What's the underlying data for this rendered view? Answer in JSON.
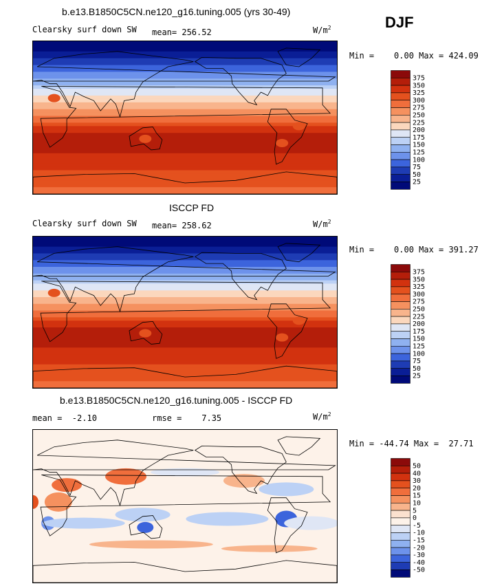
{
  "season": "DJF",
  "units_base": "W/m",
  "units_exp": "2",
  "panels": [
    {
      "title": "b.e13.B1850C5CN.ne120_g16.tuning.005 (yrs 30-49)",
      "left_label": "Clearsky surf down SW",
      "center_label": "mean= 256.52",
      "minmax": "Min =    0.00 Max = 424.09",
      "levels": [
        "375",
        "350",
        "325",
        "300",
        "275",
        "250",
        "225",
        "200",
        "175",
        "150",
        "125",
        "100",
        "75",
        "50",
        "25"
      ],
      "colors": [
        "#8b0a0a",
        "#b41e0a",
        "#d2320f",
        "#e4511e",
        "#f06e3c",
        "#f5915f",
        "#f8b48c",
        "#fbd7bd",
        "#dfe6f5",
        "#bcd1f5",
        "#8fb1f0",
        "#6d92eb",
        "#3c64dc",
        "#1e3cb4",
        "#0a1e96",
        "#000a78"
      ]
    },
    {
      "title": "ISCCP FD",
      "left_label": "Clearsky surf down SW",
      "center_label": "mean= 258.62",
      "minmax": "Min =    0.00 Max = 391.27",
      "levels": [
        "375",
        "350",
        "325",
        "300",
        "275",
        "250",
        "225",
        "200",
        "175",
        "150",
        "125",
        "100",
        "75",
        "50",
        "25"
      ],
      "colors": [
        "#8b0a0a",
        "#b41e0a",
        "#d2320f",
        "#e4511e",
        "#f06e3c",
        "#f5915f",
        "#f8b48c",
        "#fbd7bd",
        "#dfe6f5",
        "#bcd1f5",
        "#8fb1f0",
        "#6d92eb",
        "#3c64dc",
        "#1e3cb4",
        "#0a1e96",
        "#000a78"
      ]
    },
    {
      "title": "b.e13.B1850C5CN.ne120_g16.tuning.005 - ISCCP FD",
      "left_label": "mean =  -2.10",
      "center_label": "rmse =    7.35",
      "minmax": "Min = -44.74 Max =  27.71",
      "levels": [
        "50",
        "40",
        "30",
        "20",
        "15",
        "10",
        "5",
        "0",
        "-5",
        "-10",
        "-15",
        "-20",
        "-30",
        "-40",
        "-50"
      ],
      "colors": [
        "#8b0a0a",
        "#b41e0a",
        "#d2320f",
        "#e4511e",
        "#f06e3c",
        "#f5915f",
        "#f8b48c",
        "#fbe1cf",
        "#fdf2e9",
        "#dfe6f5",
        "#bcd1f5",
        "#8fb1f0",
        "#6d92eb",
        "#3c64dc",
        "#1e3cb4",
        "#000a78"
      ]
    }
  ],
  "chart_data": [
    {
      "type": "heatmap",
      "title": "b.e13.B1850C5CN.ne120_g16.tuning.005 (yrs 30-49)",
      "field": "Clearsky surf down SW",
      "units": "W/m2",
      "mean": 256.52,
      "min": 0.0,
      "max": 424.09,
      "contour_levels": [
        25,
        50,
        75,
        100,
        125,
        150,
        175,
        200,
        225,
        250,
        275,
        300,
        325,
        350,
        375
      ]
    },
    {
      "type": "heatmap",
      "title": "ISCCP FD",
      "field": "Clearsky surf down SW",
      "units": "W/m2",
      "mean": 258.62,
      "min": 0.0,
      "max": 391.27,
      "contour_levels": [
        25,
        50,
        75,
        100,
        125,
        150,
        175,
        200,
        225,
        250,
        275,
        300,
        325,
        350,
        375
      ]
    },
    {
      "type": "heatmap",
      "title": "b.e13.B1850C5CN.ne120_g16.tuning.005 - ISCCP FD",
      "units": "W/m2",
      "mean": -2.1,
      "rmse": 7.35,
      "min": -44.74,
      "max": 27.71,
      "contour_levels": [
        -50,
        -40,
        -30,
        -20,
        -15,
        -10,
        -5,
        0,
        5,
        10,
        15,
        20,
        30,
        40,
        50
      ]
    }
  ]
}
